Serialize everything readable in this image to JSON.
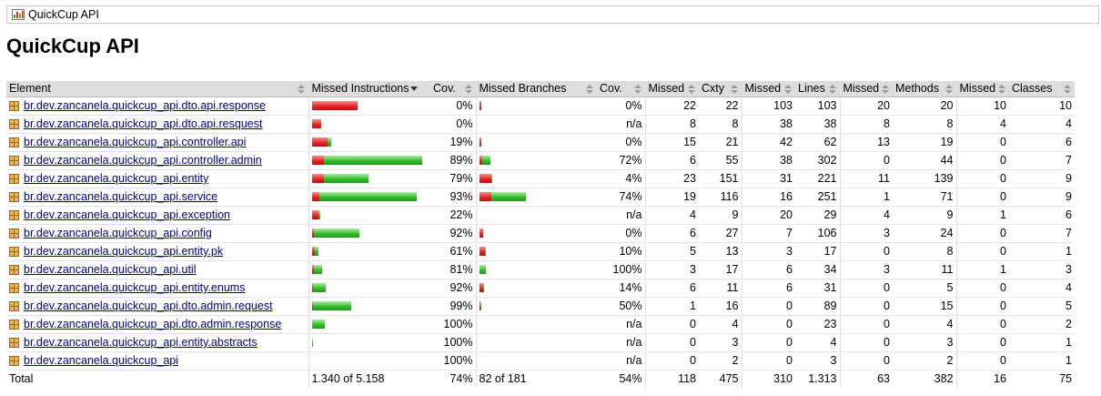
{
  "breadcrumb": {
    "label": "QuickCup API",
    "icon": "report-icon"
  },
  "title": "QuickCup API",
  "headers": [
    "Element",
    "Missed Instructions",
    "Cov.",
    "Missed Branches",
    "Cov.",
    "Missed",
    "Cxty",
    "Missed",
    "Lines",
    "Missed",
    "Methods",
    "Missed",
    "Classes"
  ],
  "rows": [
    {
      "name": "br.dev.zancanela.quickcup_api.dto.api.response",
      "instr": {
        "missed": 1.0,
        "covered": 0.0
      },
      "instr_cov": "0%",
      "branch": {
        "missed": 0.04,
        "covered": 0.0
      },
      "branch_cov": "0%",
      "cxty_missed": "22",
      "cxty": "22",
      "lines_missed": "103",
      "lines": "103",
      "methods_missed": "20",
      "methods": "20",
      "classes_missed": "10",
      "classes": "10"
    },
    {
      "name": "br.dev.zancanela.quickcup_api.dto.api.resquest",
      "instr": {
        "missed": 0.2,
        "covered": 0.0
      },
      "instr_cov": "0%",
      "branch": null,
      "branch_cov": "n/a",
      "cxty_missed": "8",
      "cxty": "8",
      "lines_missed": "38",
      "lines": "38",
      "methods_missed": "8",
      "methods": "8",
      "classes_missed": "4",
      "classes": "4"
    },
    {
      "name": "br.dev.zancanela.quickcup_api.controller.api",
      "instr": {
        "missed": 0.34,
        "covered": 0.08
      },
      "instr_cov": "19%",
      "branch": {
        "missed": 0.04,
        "covered": 0.0
      },
      "branch_cov": "0%",
      "cxty_missed": "15",
      "cxty": "21",
      "lines_missed": "42",
      "lines": "62",
      "methods_missed": "13",
      "methods": "19",
      "classes_missed": "0",
      "classes": "6"
    },
    {
      "name": "br.dev.zancanela.quickcup_api.controller.admin",
      "instr": {
        "missed": 0.25,
        "covered": 2.15
      },
      "instr_cov": "89%",
      "branch": {
        "missed": 0.06,
        "covered": 0.17
      },
      "branch_cov": "72%",
      "cxty_missed": "6",
      "cxty": "55",
      "lines_missed": "38",
      "lines": "302",
      "methods_missed": "0",
      "methods": "44",
      "classes_missed": "0",
      "classes": "7"
    },
    {
      "name": "br.dev.zancanela.quickcup_api.entity",
      "instr": {
        "missed": 0.25,
        "covered": 0.97
      },
      "instr_cov": "79%",
      "branch": {
        "missed": 0.25,
        "covered": 0.01
      },
      "branch_cov": "4%",
      "cxty_missed": "23",
      "cxty": "151",
      "lines_missed": "31",
      "lines": "221",
      "methods_missed": "11",
      "methods": "139",
      "classes_missed": "0",
      "classes": "9"
    },
    {
      "name": "br.dev.zancanela.quickcup_api.service",
      "instr": {
        "missed": 0.16,
        "covered": 2.13
      },
      "instr_cov": "93%",
      "branch": {
        "missed": 0.26,
        "covered": 0.75
      },
      "branch_cov": "74%",
      "cxty_missed": "19",
      "cxty": "116",
      "lines_missed": "16",
      "lines": "251",
      "methods_missed": "1",
      "methods": "71",
      "classes_missed": "0",
      "classes": "9"
    },
    {
      "name": "br.dev.zancanela.quickcup_api.exception",
      "instr": {
        "missed": 0.13,
        "covered": 0.04
      },
      "instr_cov": "22%",
      "branch": null,
      "branch_cov": "n/a",
      "cxty_missed": "4",
      "cxty": "9",
      "lines_missed": "20",
      "lines": "29",
      "methods_missed": "4",
      "methods": "9",
      "classes_missed": "1",
      "classes": "6"
    },
    {
      "name": "br.dev.zancanela.quickcup_api.config",
      "instr": {
        "missed": 0.04,
        "covered": 0.99
      },
      "instr_cov": "92%",
      "branch": {
        "missed": 0.07,
        "covered": 0.0
      },
      "branch_cov": "0%",
      "cxty_missed": "6",
      "cxty": "27",
      "lines_missed": "7",
      "lines": "106",
      "methods_missed": "3",
      "methods": "24",
      "classes_missed": "0",
      "classes": "7"
    },
    {
      "name": "br.dev.zancanela.quickcup_api.entity.pk",
      "instr": {
        "missed": 0.05,
        "covered": 0.08
      },
      "instr_cov": "61%",
      "branch": {
        "missed": 0.11,
        "covered": 0.01
      },
      "branch_cov": "10%",
      "cxty_missed": "5",
      "cxty": "13",
      "lines_missed": "3",
      "lines": "17",
      "methods_missed": "0",
      "methods": "8",
      "classes_missed": "0",
      "classes": "1"
    },
    {
      "name": "br.dev.zancanela.quickcup_api.util",
      "instr": {
        "missed": 0.04,
        "covered": 0.18
      },
      "instr_cov": "81%",
      "branch": {
        "missed": 0.0,
        "covered": 0.14
      },
      "branch_cov": "100%",
      "cxty_missed": "3",
      "cxty": "17",
      "lines_missed": "6",
      "lines": "34",
      "methods_missed": "3",
      "methods": "11",
      "classes_missed": "1",
      "classes": "3"
    },
    {
      "name": "br.dev.zancanela.quickcup_api.entity.enums",
      "instr": {
        "missed": 0.02,
        "covered": 0.28
      },
      "instr_cov": "92%",
      "branch": {
        "missed": 0.07,
        "covered": 0.01
      },
      "branch_cov": "14%",
      "cxty_missed": "6",
      "cxty": "11",
      "lines_missed": "6",
      "lines": "31",
      "methods_missed": "0",
      "methods": "5",
      "classes_missed": "0",
      "classes": "4"
    },
    {
      "name": "br.dev.zancanela.quickcup_api.dto.admin.request",
      "instr": {
        "missed": 0.01,
        "covered": 0.83
      },
      "instr_cov": "99%",
      "branch": {
        "missed": 0.01,
        "covered": 0.01
      },
      "branch_cov": "50%",
      "cxty_missed": "1",
      "cxty": "16",
      "lines_missed": "0",
      "lines": "89",
      "methods_missed": "0",
      "methods": "15",
      "classes_missed": "0",
      "classes": "5"
    },
    {
      "name": "br.dev.zancanela.quickcup_api.dto.admin.response",
      "instr": {
        "missed": 0.0,
        "covered": 0.28
      },
      "instr_cov": "100%",
      "branch": null,
      "branch_cov": "n/a",
      "cxty_missed": "0",
      "cxty": "4",
      "lines_missed": "0",
      "lines": "23",
      "methods_missed": "0",
      "methods": "4",
      "classes_missed": "0",
      "classes": "2"
    },
    {
      "name": "br.dev.zancanela.quickcup_api.entity.abstracts",
      "instr": {
        "missed": 0.0,
        "covered": 0.02
      },
      "instr_cov": "100%",
      "branch": null,
      "branch_cov": "n/a",
      "cxty_missed": "0",
      "cxty": "3",
      "lines_missed": "0",
      "lines": "4",
      "methods_missed": "0",
      "methods": "3",
      "classes_missed": "0",
      "classes": "1"
    },
    {
      "name": "br.dev.zancanela.quickcup_api",
      "instr": null,
      "instr_cov": "100%",
      "branch": null,
      "branch_cov": "n/a",
      "cxty_missed": "0",
      "cxty": "2",
      "lines_missed": "0",
      "lines": "3",
      "methods_missed": "0",
      "methods": "2",
      "classes_missed": "0",
      "classes": "1"
    }
  ],
  "total": {
    "label": "Total",
    "instr": "1.340 of 5.158",
    "instr_cov": "74%",
    "branch": "82 of 181",
    "branch_cov": "54%",
    "cxty_missed": "118",
    "cxty": "475",
    "lines_missed": "310",
    "lines": "1.313",
    "methods_missed": "63",
    "methods": "382",
    "classes_missed": "16",
    "classes": "75"
  },
  "colors": {
    "missed": "#e02020",
    "covered": "#2fb828",
    "link": "#00008b",
    "header_bg": "#dddddd"
  }
}
